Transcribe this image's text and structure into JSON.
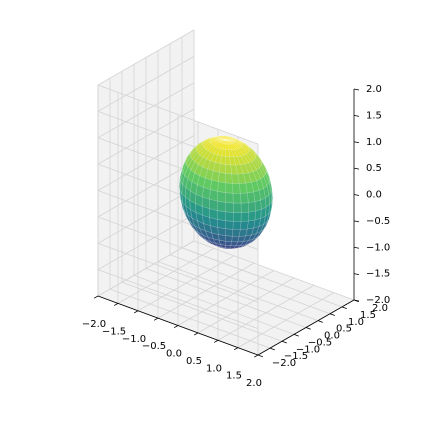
{
  "chart_data": {
    "type": "surface",
    "title": "",
    "xlabel": "",
    "ylabel": "",
    "zlabel": "",
    "xlim": [
      -2,
      2
    ],
    "ylim": [
      -2,
      2
    ],
    "zlim": [
      -2,
      2
    ],
    "grid": true,
    "x_ticks": [
      "−2.0",
      "−1.5",
      "−1.0",
      "−0.5",
      "0.0",
      "0.5",
      "1.0",
      "1.5",
      "2.0"
    ],
    "y_ticks": [
      "−2.0",
      "−1.5",
      "−1.0",
      "−0.5",
      "0.0",
      "0.5",
      "1.0",
      "1.5",
      "2.0"
    ],
    "z_ticks": [
      "−2.0",
      "−1.5",
      "−1.0",
      "−0.5",
      "0.0",
      "0.5",
      "1.0",
      "1.5",
      "2.0"
    ],
    "series": [
      {
        "surface": "sphere",
        "radius": 1,
        "center": [
          0,
          0,
          0
        ],
        "colormap": "viridis",
        "color_low": "#2c3b86",
        "color_high": "#dde318",
        "edgecolor": "#ffffff"
      }
    ]
  }
}
